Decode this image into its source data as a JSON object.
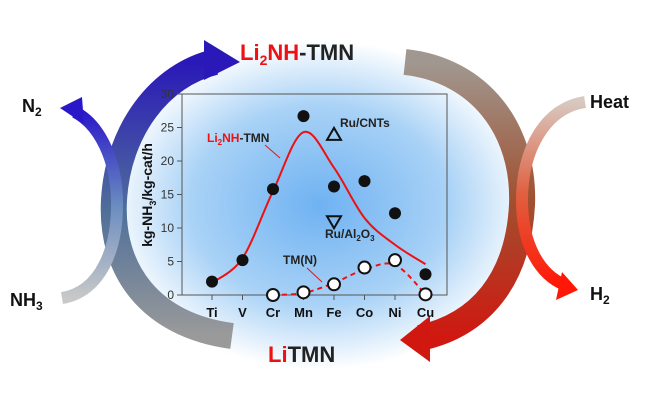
{
  "diagram": {
    "top_label": {
      "red": "Li",
      "red_sub": "2",
      "red2": "NH",
      "black": "-TMN"
    },
    "bottom_label": {
      "red": "Li",
      "black": "TMN"
    },
    "left_inputs": {
      "top": "N",
      "top_sub": "2",
      "bottom": "NH",
      "bottom_sub": "3"
    },
    "right_inputs": {
      "top": "Heat",
      "bottom": "H",
      "bottom_sub": "2"
    },
    "colors": {
      "blue_arrow": "#2a20c0",
      "gray_arrow": "#8a8f98",
      "red_arrow": "#e01010",
      "brown_arrow": "#9a7060",
      "glow": "#6fb2f2",
      "accent_red": "#ee1111"
    }
  },
  "chart_data": {
    "type": "scatter",
    "categories": [
      "Ti",
      "V",
      "Cr",
      "Mn",
      "Fe",
      "Co",
      "Ni",
      "Cu"
    ],
    "ylabel": {
      "pre": "kg-NH",
      "sub": "3",
      "post": "/kg-cat/h"
    },
    "ylim": [
      0,
      30
    ],
    "yticks": [
      "0",
      "5",
      "10",
      "15",
      "20",
      "25",
      "30"
    ],
    "grid": false,
    "series": [
      {
        "name": "Li2NH-TMN",
        "label": {
          "red": "Li",
          "red_sub": "2",
          "red2": "NH",
          "black": "-TMN"
        },
        "marker": "filled-circle",
        "values": [
          2.0,
          5.2,
          15.8,
          26.7,
          16.2,
          17.0,
          12.2,
          3.1
        ],
        "fit": [
          1.8,
          5.5,
          15.5,
          24.3,
          19.0,
          11.5,
          7.5,
          4.6
        ]
      },
      {
        "name": "TM(N)",
        "marker": "open-circle",
        "values": [
          null,
          null,
          0.0,
          0.4,
          1.6,
          4.1,
          5.2,
          0.1
        ],
        "fit": [
          null,
          null,
          0.0,
          0.3,
          1.8,
          3.8,
          4.5,
          0.1
        ]
      }
    ],
    "references": [
      {
        "name": "Ru/CNTs",
        "category": "Fe",
        "value": 23.9,
        "marker": "triangle-up"
      },
      {
        "name": "Ru/Al2O3",
        "label": {
          "pre": "Ru/Al",
          "sub1": "2",
          "mid": "O",
          "sub2": "3"
        },
        "category": "Fe",
        "value": 11.0,
        "marker": "triangle-down"
      }
    ]
  }
}
